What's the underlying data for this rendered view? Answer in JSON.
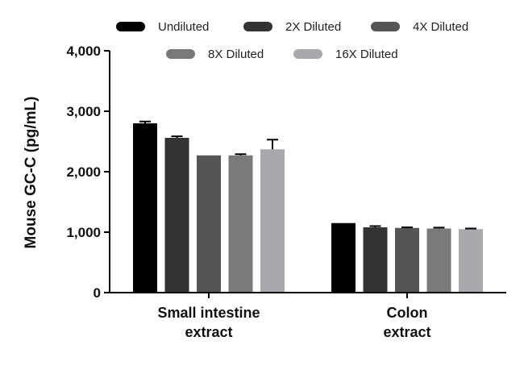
{
  "chart_data": {
    "type": "bar",
    "ylabel": "Mouse GC-C (pg/mL)",
    "ylim": [
      0,
      4000
    ],
    "yticks": [
      0,
      1000,
      2000,
      3000,
      4000
    ],
    "ytick_labels": [
      "0",
      "1,000",
      "2,000",
      "3,000",
      "4,000"
    ],
    "categories": [
      [
        "Small intestine",
        "extract"
      ],
      [
        "Colon",
        "extract"
      ]
    ],
    "series": [
      {
        "name": "Undiluted",
        "color": "#000000",
        "values": [
          2800,
          1150
        ],
        "errors": [
          30,
          0
        ]
      },
      {
        "name": "2X Diluted",
        "color": "#333333",
        "values": [
          2560,
          1080
        ],
        "errors": [
          25,
          20
        ]
      },
      {
        "name": "4X Diluted",
        "color": "#555555",
        "values": [
          2270,
          1070
        ],
        "errors": [
          0,
          10
        ]
      },
      {
        "name": "8X Diluted",
        "color": "#7a7a7a",
        "values": [
          2270,
          1060
        ],
        "errors": [
          20,
          15
        ]
      },
      {
        "name": "16X Diluted",
        "color": "#a8a8ad",
        "values": [
          2370,
          1050
        ],
        "errors": [
          160,
          10
        ]
      }
    ],
    "legend_position": "top",
    "grid": false
  }
}
